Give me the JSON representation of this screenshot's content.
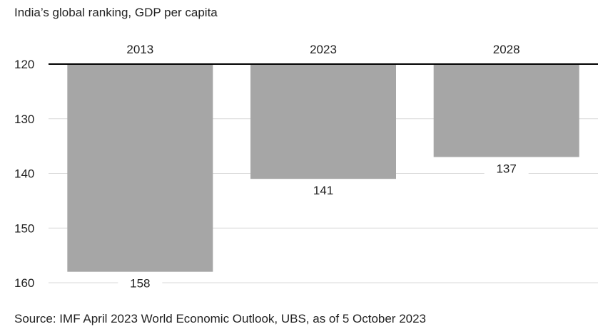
{
  "chart_data": {
    "type": "bar",
    "title": "India’s global ranking, GDP per capita",
    "source": "Source: IMF April 2023 World Economic Outlook, UBS, as of 5 October 2023",
    "categories": [
      "2013",
      "2023",
      "2028"
    ],
    "values": [
      158,
      141,
      137
    ],
    "value_labels": [
      "158",
      "141",
      "137"
    ],
    "xlabel": "",
    "ylabel": "",
    "ylim": [
      120,
      160
    ],
    "y_inverted": true,
    "y_ticks": [
      120,
      130,
      140,
      150,
      160
    ],
    "y_tick_labels": [
      "120",
      "130",
      "140",
      "150",
      "160"
    ],
    "x_axis_position": "top",
    "grid": true,
    "colors": {
      "bar": "#a6a6a6",
      "axis": "#000000",
      "grid": "#d9d9d9",
      "text": "#222222"
    }
  }
}
